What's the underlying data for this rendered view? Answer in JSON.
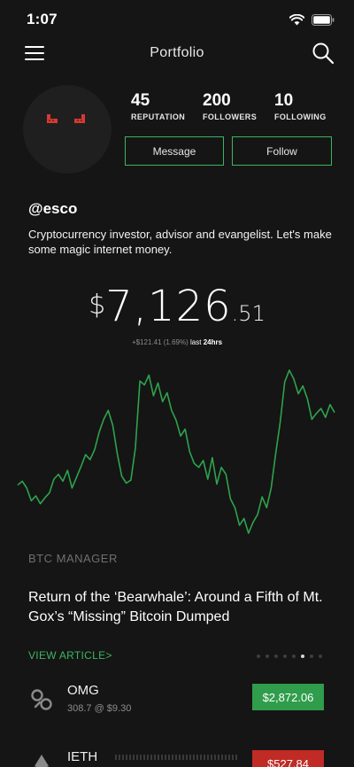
{
  "status": {
    "time": "1:07"
  },
  "nav": {
    "title": "Portfolio"
  },
  "profile": {
    "stats": [
      {
        "value": "45",
        "label": "REPUTATION"
      },
      {
        "value": "200",
        "label": "FOLLOWERS"
      },
      {
        "value": "10",
        "label": "FOLLOWING"
      }
    ],
    "message_label": "Message",
    "follow_label": "Follow",
    "username": "@esco",
    "bio": "Cryptocurrency investor, advisor and evangelist. Let's make some magic internet money."
  },
  "balance": {
    "symbol": "$",
    "integer": "7,126",
    "decimal": ".51",
    "change": "+$121.41 (1.69%)",
    "period_prefix": "last",
    "period": "24hrs"
  },
  "colors": {
    "accent": "#3cb55e",
    "down": "#c12b26",
    "background": "#151515"
  },
  "chart_data": {
    "type": "line",
    "title": "",
    "xlabel": "",
    "ylabel": "",
    "grid": false,
    "series": [
      {
        "values": [
          74,
          78,
          71,
          58,
          63,
          55,
          61,
          66,
          80,
          85,
          78,
          89,
          71,
          82,
          93,
          105,
          100,
          110,
          128,
          141,
          150,
          135,
          106,
          83,
          76,
          79,
          112,
          180,
          176,
          186,
          165,
          178,
          159,
          168,
          150,
          140,
          124,
          131,
          108,
          96,
          92,
          99,
          80,
          102,
          75,
          92,
          85,
          60,
          51,
          33,
          40,
          25,
          36,
          44,
          62,
          51,
          71,
          106,
          138,
          179,
          191,
          182,
          167,
          175,
          162,
          141,
          147,
          152,
          143,
          156,
          148
        ]
      }
    ]
  },
  "news": {
    "section": "BTC MANAGER",
    "headline": "Return of the ‘Bearwhale’: Around a Fifth of Mt. Gox’s “Missing” Bitcoin Dumped",
    "link": "VIEW ARTICLE>",
    "pages": 8,
    "active_page": 6
  },
  "coins": [
    {
      "name": "OMG",
      "detail": "308.7 @ $9.30",
      "price": "$2,872.06",
      "trend": "up",
      "icon": "omisego-icon"
    },
    {
      "name": "IETH",
      "detail": "",
      "price": "$527.84",
      "trend": "down",
      "icon": "ethereum-icon"
    }
  ]
}
